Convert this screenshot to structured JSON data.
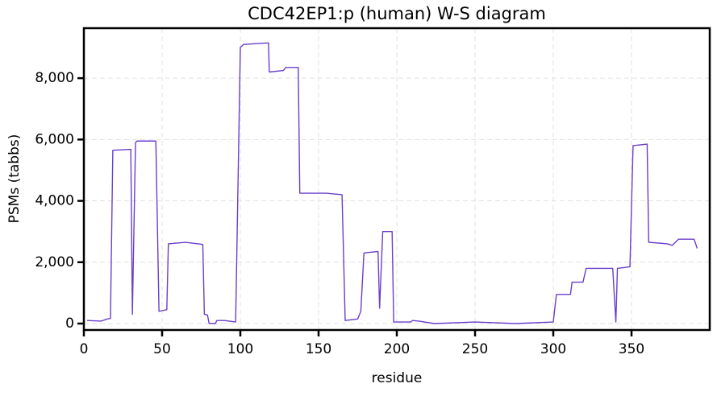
{
  "chart_data": {
    "type": "line",
    "title": "CDC42EP1:p (human) W-S diagram",
    "x_label": "residue",
    "y_label": "PSMs (tabbs)",
    "grid": true,
    "xlim": [
      0,
      400
    ],
    "ylim": [
      -210,
      9630
    ],
    "xticks": [
      0,
      50,
      100,
      150,
      200,
      250,
      300,
      350
    ],
    "yticks": [
      0,
      {
        "value": 2000,
        "label": "2,000"
      },
      {
        "value": 4000,
        "label": "4,000"
      },
      {
        "value": 6000,
        "label": "6,000"
      },
      {
        "value": 8000,
        "label": "8,000"
      }
    ],
    "series": [
      {
        "name": "PSMs",
        "color": "#6a3fc9",
        "x": [
          2,
          11,
          15,
          17,
          18.5,
          30,
          31,
          33,
          34,
          46,
          48,
          53,
          54,
          65,
          76,
          77,
          79,
          80,
          84,
          85,
          90,
          97,
          100,
          102,
          118,
          118.5,
          127.5,
          129,
          137,
          138,
          155,
          165,
          167,
          175,
          177,
          179,
          188,
          189,
          191,
          197,
          198,
          209,
          210,
          214,
          224,
          250,
          276,
          300,
          302,
          311,
          312,
          319,
          321,
          338,
          340,
          341,
          349,
          351,
          360,
          361,
          373,
          376,
          380,
          390,
          392
        ],
        "values": [
          100,
          80,
          150,
          170,
          5650,
          5680,
          300,
          5900,
          5950,
          5950,
          400,
          450,
          2600,
          2650,
          2580,
          300,
          280,
          10,
          0,
          100,
          100,
          50,
          9000,
          9100,
          9150,
          8200,
          8250,
          8350,
          8350,
          4250,
          4250,
          4200,
          100,
          150,
          400,
          2300,
          2350,
          500,
          3000,
          3000,
          50,
          50,
          100,
          80,
          0,
          50,
          0,
          50,
          950,
          950,
          1350,
          1350,
          1800,
          1800,
          50,
          1800,
          1850,
          5800,
          5850,
          2650,
          2600,
          2550,
          2750,
          2750,
          2450
        ]
      }
    ]
  }
}
